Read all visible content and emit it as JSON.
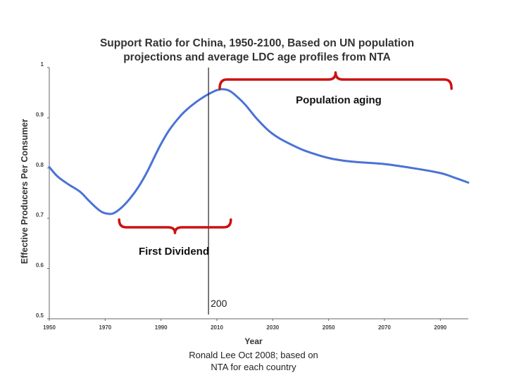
{
  "chart_data": {
    "type": "line",
    "title_line1": "Support Ratio for China, 1950-2100, Based on UN population",
    "title_line2": "projections and average LDC age profiles from NTA",
    "xlabel": "Year",
    "ylabel": "Effective Producers Per Consumer",
    "xlim": [
      1950,
      2100
    ],
    "ylim": [
      0.5,
      1
    ],
    "x_ticks": [
      1950,
      1970,
      1990,
      2010,
      2030,
      2050,
      2070,
      2090
    ],
    "y_ticks": [
      0.5,
      0.6,
      0.7,
      0.8,
      0.9,
      1
    ],
    "y_tick_labels": [
      "0.5",
      "0.6",
      "0.7",
      "0.8",
      "0.9",
      "1"
    ],
    "series": [
      {
        "name": "Support ratio",
        "color": "#4a72d6",
        "x": [
          1950,
          1953,
          1957,
          1961,
          1964,
          1967,
          1969,
          1971,
          1973,
          1976,
          1979,
          1982,
          1985,
          1988,
          1990,
          1993,
          1997,
          2000,
          2003,
          2006,
          2008,
          2010,
          2012,
          2014,
          2016,
          2020,
          2024,
          2028,
          2031,
          2034,
          2040,
          2045,
          2050,
          2055,
          2060,
          2070,
          2080,
          2090,
          2095,
          2100
        ],
        "y": [
          0.802,
          0.783,
          0.767,
          0.753,
          0.736,
          0.72,
          0.712,
          0.709,
          0.71,
          0.722,
          0.74,
          0.763,
          0.792,
          0.826,
          0.848,
          0.876,
          0.904,
          0.92,
          0.933,
          0.944,
          0.95,
          0.955,
          0.957,
          0.955,
          0.948,
          0.927,
          0.9,
          0.877,
          0.864,
          0.854,
          0.838,
          0.828,
          0.82,
          0.815,
          0.812,
          0.808,
          0.8,
          0.79,
          0.781,
          0.771
        ]
      }
    ],
    "vertical_line": {
      "x": 2007,
      "label": "200"
    },
    "annotations": [
      {
        "text": "Population aging",
        "x_start": 2011,
        "x_end": 2094,
        "color": "#cc1111"
      },
      {
        "text": "First Dividend",
        "x_start": 1975,
        "x_end": 2015,
        "color": "#cc1111"
      }
    ]
  },
  "credit": {
    "line1": "Ronald Lee Oct 2008; based on",
    "line2": "NTA for each country"
  }
}
